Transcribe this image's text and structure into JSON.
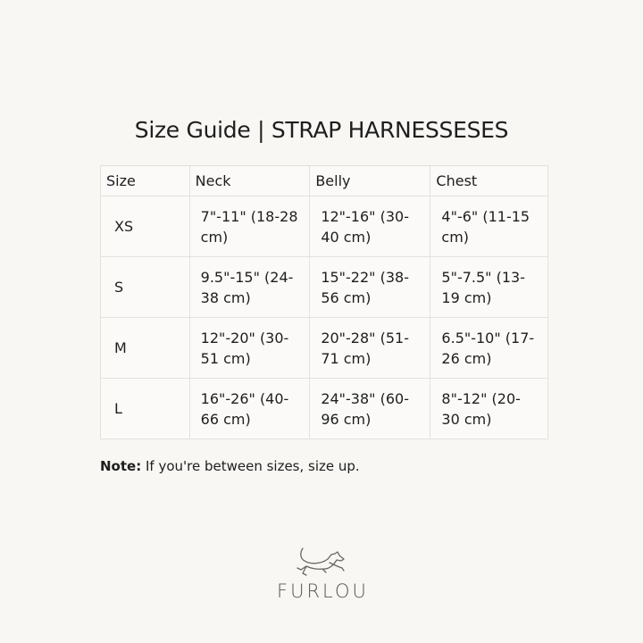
{
  "title": "Size Guide | STRAP HARNESSESES",
  "table": {
    "headers": [
      "Size",
      "Neck",
      "Belly",
      "Chest"
    ],
    "rows": [
      [
        "XS",
        "7\"-11\" (18-28 cm)",
        "12\"-16\" (30-40 cm)",
        "4\"-6\" (11-15 cm)"
      ],
      [
        "S",
        "9.5\"-15\" (24-38 cm)",
        "15\"-22\" (38-56 cm)",
        "5\"-7.5\" (13-19 cm)"
      ],
      [
        "M",
        "12\"-20\" (30-51 cm)",
        "20\"-28\" (51-71 cm)",
        "6.5\"-10\" (17-26 cm)"
      ],
      [
        "L",
        "16\"-26\" (40-66 cm)",
        "24\"-38\" (60-96 cm)",
        "8\"-12\" (20-30 cm)"
      ]
    ]
  },
  "note": {
    "label": "Note:",
    "text": " If you're between sizes, size up."
  },
  "logo": {
    "text": "FURLOU",
    "icon": "running-dog-icon"
  }
}
